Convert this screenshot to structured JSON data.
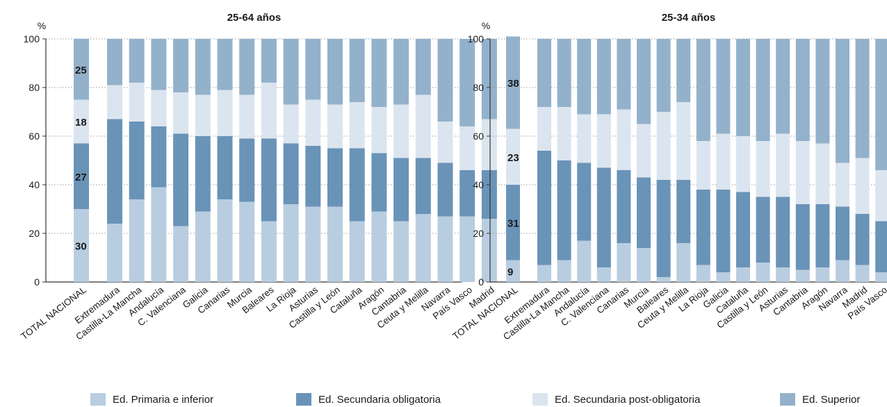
{
  "colors": {
    "primaria": "#b9cde0",
    "sec_obligatoria": "#6a93b8",
    "sec_post": "#dbe5ef",
    "superior": "#93b1cb",
    "grid": "#9a9a9a",
    "axis": "#333333"
  },
  "legend": [
    {
      "label": "Ed. Primaria e inferior",
      "color": "#b9cde0"
    },
    {
      "label": "Ed. Secundaria obligatoria",
      "color": "#6a93b8"
    },
    {
      "label": "Ed. Secundaria post-obligatoria",
      "color": "#dbe5ef"
    },
    {
      "label": "Ed. Superior",
      "color": "#93b1cb"
    }
  ],
  "chart_data": [
    {
      "type": "bar",
      "stacked": true,
      "title": "25-64 años",
      "ylabel": "%",
      "xlabel": "",
      "ylim": [
        0,
        100
      ],
      "yticks": [
        0,
        20,
        40,
        60,
        80,
        100
      ],
      "grid": "horizontal dotted",
      "categories": [
        "TOTAL NACIONAL",
        "Extremadura",
        "Castilla-La Mancha",
        "Andalucía",
        "C. Valenciana",
        "Galicia",
        "Canarias",
        "Murcia",
        "Baleares",
        "La Rioja",
        "Asturias",
        "Castilla y León",
        "Cataluña",
        "Aragón",
        "Cantabria",
        "Ceuta y Melilla",
        "Navarra",
        "País Vasco",
        "Madrid"
      ],
      "series": [
        {
          "name": "Ed. Primaria e inferior",
          "values": [
            30,
            24,
            34,
            39,
            23,
            29,
            34,
            33,
            25,
            32,
            31,
            31,
            25,
            29,
            25,
            28,
            27,
            27,
            26
          ]
        },
        {
          "name": "Ed. Secundaria obligatoria",
          "values": [
            27,
            43,
            32,
            25,
            38,
            31,
            26,
            26,
            34,
            25,
            25,
            24,
            30,
            24,
            26,
            23,
            22,
            19,
            20
          ]
        },
        {
          "name": "Ed. Secundaria post-obligatoria",
          "values": [
            18,
            14,
            16,
            15,
            17,
            17,
            19,
            18,
            23,
            16,
            19,
            18,
            19,
            19,
            22,
            26,
            17,
            18,
            21
          ]
        },
        {
          "name": "Ed. Superior",
          "values": [
            25,
            19,
            18,
            21,
            22,
            23,
            21,
            23,
            18,
            27,
            25,
            27,
            26,
            28,
            27,
            23,
            34,
            36,
            33
          ]
        }
      ],
      "data_labels": {
        "category": "TOTAL NACIONAL",
        "values": [
          "30",
          "27",
          "18",
          "25"
        ]
      }
    },
    {
      "type": "bar",
      "stacked": true,
      "title": "25-34 años",
      "ylabel": "%",
      "xlabel": "",
      "ylim": [
        0,
        100
      ],
      "yticks": [
        0,
        20,
        40,
        60,
        80,
        100
      ],
      "grid": "horizontal dotted",
      "categories": [
        "TOTAL NACIONAL",
        "Extremadura",
        "Castilla-La Mancha",
        "Andalucía",
        "C. Valenciana",
        "Canarias",
        "Murcia",
        "Baleares",
        "Ceuta y Melilla",
        "La Rioja",
        "Galicia",
        "Cataluña",
        "Castilla y León",
        "Asturias",
        "Cantabria",
        "Aragón",
        "Navarra",
        "Madrid",
        "País Vasco"
      ],
      "series": [
        {
          "name": "Ed. Primaria e inferior",
          "values": [
            9,
            7,
            9,
            17,
            6,
            16,
            14,
            2,
            16,
            7,
            4,
            6,
            8,
            6,
            5,
            6,
            9,
            7,
            4
          ]
        },
        {
          "name": "Ed. Secundaria obligatoria",
          "values": [
            31,
            47,
            41,
            32,
            41,
            30,
            29,
            40,
            26,
            31,
            34,
            31,
            27,
            29,
            27,
            26,
            22,
            21,
            21
          ]
        },
        {
          "name": "Ed. Secundaria post-obligatoria",
          "values": [
            23,
            18,
            22,
            20,
            22,
            25,
            22,
            28,
            32,
            20,
            23,
            23,
            23,
            26,
            26,
            25,
            18,
            23,
            21
          ]
        },
        {
          "name": "Ed. Superior",
          "values": [
            38,
            28,
            28,
            31,
            31,
            29,
            35,
            30,
            26,
            42,
            39,
            40,
            42,
            39,
            42,
            43,
            51,
            49,
            54
          ]
        }
      ],
      "data_labels": {
        "category": "TOTAL NACIONAL",
        "values": [
          "9",
          "31",
          "23",
          "38"
        ]
      }
    }
  ]
}
